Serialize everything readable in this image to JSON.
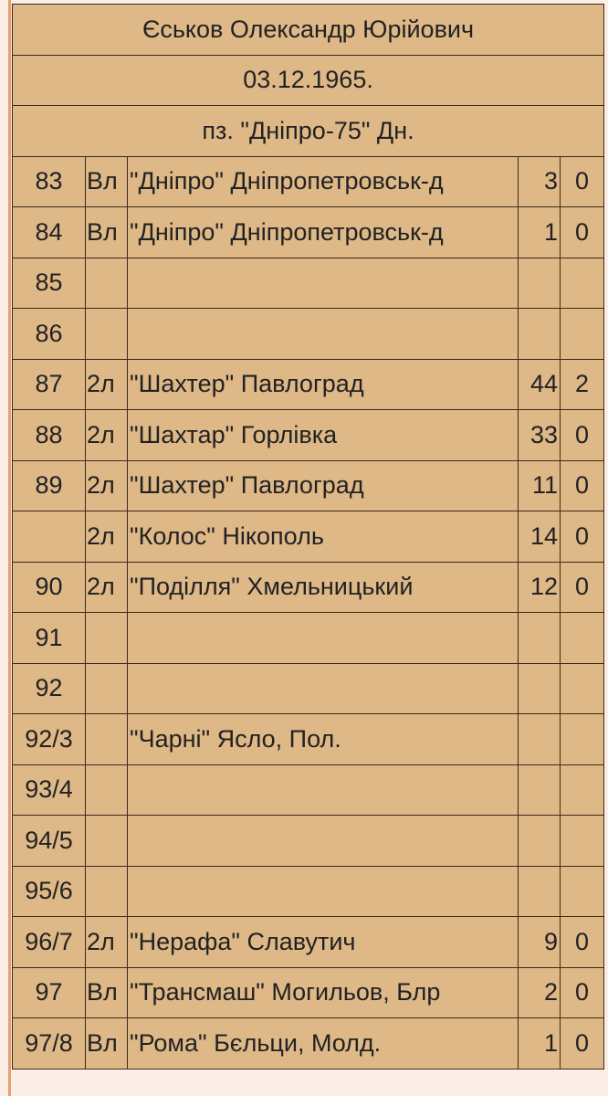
{
  "header": {
    "name": "Єськов Олександр Юрійович",
    "birth_date": "03.12.1965.",
    "school": "пз. \"Дніпро-75\" Дн."
  },
  "table": {
    "rows": [
      [
        "83",
        "Вл",
        "\"Дніпро\" Дніпропетровськ-д",
        "3",
        "0"
      ],
      [
        "84",
        "Вл",
        "\"Дніпро\" Дніпропетровськ-д",
        "1",
        "0"
      ],
      [
        "85",
        null,
        null,
        null,
        null
      ],
      [
        "86",
        null,
        null,
        null,
        null
      ],
      [
        "87",
        "2л",
        "\"Шахтер\" Павлоград",
        "44",
        "2"
      ],
      [
        "88",
        "2л",
        "\"Шахтар\" Горлівка",
        "33",
        "0"
      ],
      [
        "89",
        "2л",
        "\"Шахтер\" Павлоград",
        "11",
        "0"
      ],
      [
        null,
        "2л",
        "\"Колос\" Нікополь",
        "14",
        "0"
      ],
      [
        "90",
        "2л",
        "\"Поділля\" Хмельницький",
        "12",
        "0"
      ],
      [
        "91",
        null,
        null,
        null,
        null
      ],
      [
        "92",
        null,
        null,
        null,
        null
      ],
      [
        "92/3",
        null,
        "\"Чарні\" Ясло, Пол.",
        null,
        null
      ],
      [
        "93/4",
        null,
        null,
        null,
        null
      ],
      [
        "94/5",
        null,
        null,
        null,
        null
      ],
      [
        "95/6",
        null,
        null,
        null,
        null
      ],
      [
        "96/7",
        "2л",
        "\"Нерафа\" Славутич",
        "9",
        "0"
      ],
      [
        "97",
        "Вл",
        "\"Трансмаш\" Могильов, Блр",
        "2",
        "0"
      ],
      [
        "97/8",
        "Вл",
        "\"Рома\" Бєльци, Молд.",
        "1",
        "0"
      ]
    ]
  }
}
